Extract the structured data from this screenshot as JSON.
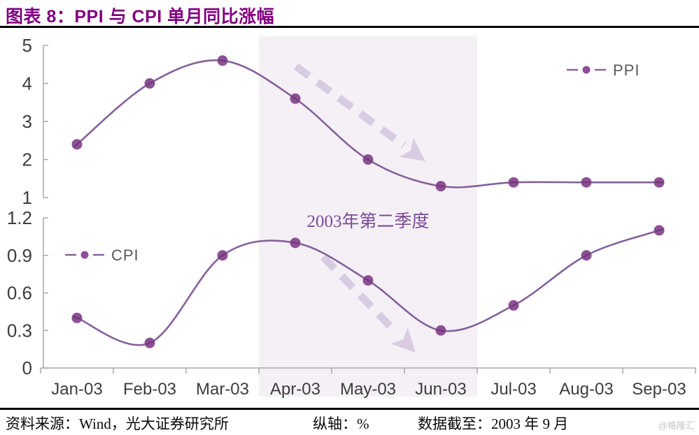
{
  "header": {
    "title": "图表 8：PPI 与 CPI 单月同比涨幅"
  },
  "footer": {
    "source": "资料来源：Wind，光大证券研究所",
    "axis_note": "纵轴：%",
    "cutoff": "数据截至：2003 年 9 月",
    "watermark": "@格隆汇"
  },
  "colors": {
    "title": "#800080",
    "series_line": "#85609b",
    "marker_fill": "#8e4f96",
    "marker_chord": "#4f2b5a",
    "highlight_band": "#f5f0f6",
    "arrow": "#d8cce2",
    "axis": "#a9a9a9",
    "tick_text": "#3d3d3d",
    "legend_text": "#595959",
    "annotation_text": "#7b4a99",
    "watermark": "#c4c4c4",
    "footer_text": "#0a0a0a"
  },
  "chart_data": {
    "type": "line",
    "categories": [
      "Jan-03",
      "Feb-03",
      "Mar-03",
      "Apr-03",
      "May-03",
      "Jun-03",
      "Jul-03",
      "Aug-03",
      "Sep-03"
    ],
    "panels": [
      {
        "series": {
          "name": "PPI",
          "values": [
            2.4,
            4.0,
            4.6,
            3.6,
            2.0,
            1.3,
            1.4,
            1.4,
            1.4
          ]
        },
        "ylim": [
          1,
          5
        ],
        "yticks": [
          5,
          4,
          3,
          2,
          1
        ],
        "legend_label": "PPI"
      },
      {
        "series": {
          "name": "CPI",
          "values": [
            0.4,
            0.2,
            0.9,
            1.0,
            0.7,
            0.3,
            0.5,
            0.9,
            1.1
          ]
        },
        "ylim": [
          0,
          1.2
        ],
        "yticks": [
          1.2,
          0.9,
          0.6,
          0.3,
          0
        ],
        "legend_label": "CPI"
      }
    ],
    "highlight": {
      "label": "2003年第二季度",
      "from_category": "Apr-03",
      "to_category": "Jun-03"
    },
    "unit_note": "%",
    "grid": false,
    "smooth": true,
    "legend_positions": [
      "top-right",
      "mid-left"
    ]
  }
}
